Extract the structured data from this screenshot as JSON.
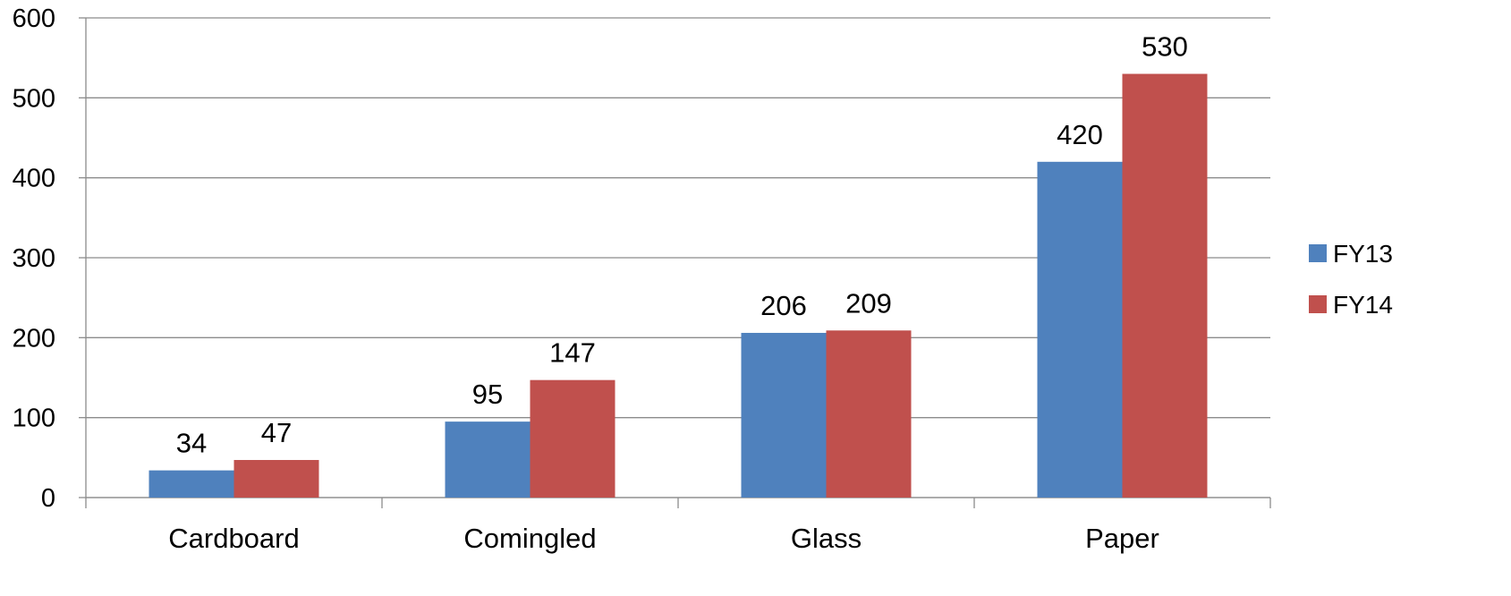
{
  "chart_data": {
    "type": "bar",
    "categories": [
      "Cardboard",
      "Comingled",
      "Glass",
      "Paper"
    ],
    "series": [
      {
        "name": "FY13",
        "color": "#4f81bd",
        "values": [
          34,
          95,
          206,
          420
        ]
      },
      {
        "name": "FY14",
        "color": "#c0504d",
        "values": [
          47,
          147,
          209,
          530
        ]
      }
    ],
    "ylim": [
      0,
      600
    ],
    "yticks": [
      0,
      100,
      200,
      300,
      400,
      500,
      600
    ],
    "grid": true,
    "legend": "right",
    "title": "",
    "xlabel": "",
    "ylabel": ""
  }
}
